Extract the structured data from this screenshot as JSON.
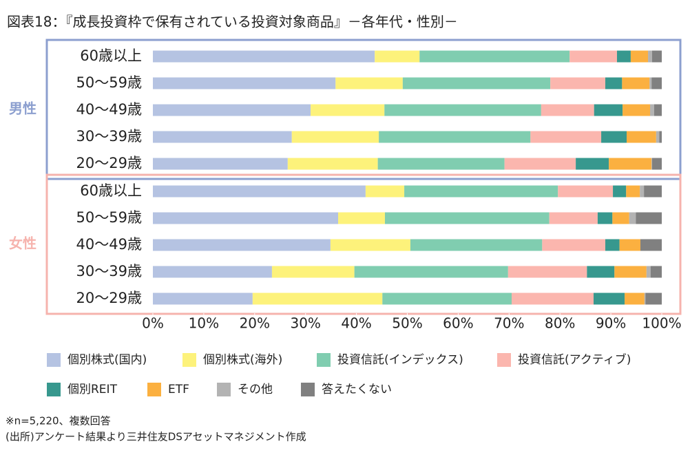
{
  "chart_data": {
    "type": "stacked-bar-horizontal",
    "title": "図表18：『成長投資枠で保有されている投資対象商品』－各年代・性別－",
    "groups": [
      {
        "name": "男性",
        "color": "#8c9fcf",
        "categories": [
          "60歳以上",
          "50～59歳",
          "40～49歳",
          "30～39歳",
          "20～29歳"
        ]
      },
      {
        "name": "女性",
        "color": "#f6b3ad",
        "categories": [
          "60歳以上",
          "50～59歳",
          "40～49歳",
          "30～39歳",
          "20～29歳"
        ]
      }
    ],
    "series": [
      {
        "name": "個別株式(国内)",
        "color": "#b5c3e2",
        "values": [
          43.6,
          35.9,
          31.0,
          27.3,
          26.5,
          41.8,
          36.4,
          34.9,
          23.4,
          19.6
        ]
      },
      {
        "name": "個別株式(海外)",
        "color": "#fdf27b",
        "values": [
          8.8,
          13.2,
          14.5,
          17.1,
          17.7,
          7.6,
          9.2,
          15.7,
          16.2,
          25.5
        ]
      },
      {
        "name": "投資信託(インデックス)",
        "color": "#80cdb0",
        "values": [
          29.5,
          29.0,
          30.8,
          29.8,
          24.9,
          30.2,
          32.3,
          25.9,
          30.2,
          25.4
        ]
      },
      {
        "name": "投資信託(アクティブ)",
        "color": "#fbb6ae",
        "values": [
          9.3,
          10.8,
          10.4,
          13.9,
          14.0,
          10.8,
          9.5,
          12.4,
          15.5,
          16.1
        ]
      },
      {
        "name": "個別REIT",
        "color": "#37988e",
        "values": [
          2.7,
          3.3,
          5.6,
          5.0,
          6.5,
          2.6,
          2.9,
          2.8,
          5.4,
          6.1
        ]
      },
      {
        "name": "ETF",
        "color": "#fbb040",
        "values": [
          3.4,
          5.4,
          5.4,
          5.8,
          8.4,
          2.7,
          3.3,
          4.1,
          6.3,
          3.9
        ]
      },
      {
        "name": "その他",
        "color": "#b3b3b3",
        "values": [
          0.8,
          0.4,
          0.8,
          0.6,
          0.1,
          0.8,
          1.3,
          0.0,
          0.8,
          0.2
        ]
      },
      {
        "name": "答えたくない",
        "color": "#808080",
        "values": [
          1.9,
          2.0,
          1.5,
          0.5,
          1.9,
          3.5,
          5.1,
          4.2,
          2.2,
          3.2
        ]
      }
    ],
    "xlim": [
      0,
      100
    ],
    "xticks": [
      {
        "value": 0,
        "label": "0%"
      },
      {
        "value": 10,
        "label": "10%"
      },
      {
        "value": 20,
        "label": "20%"
      },
      {
        "value": 30,
        "label": "30%"
      },
      {
        "value": 40,
        "label": "40%"
      },
      {
        "value": 50,
        "label": "50%"
      },
      {
        "value": 60,
        "label": "60%"
      },
      {
        "value": 70,
        "label": "70%"
      },
      {
        "value": 80,
        "label": "80%"
      },
      {
        "value": 90,
        "label": "90%"
      },
      {
        "value": 100,
        "label": "100%"
      }
    ],
    "notes": [
      "※n=5,220、複数回答",
      "(出所)アンケート結果より三井住友DSアセットマネジメント作成"
    ]
  }
}
